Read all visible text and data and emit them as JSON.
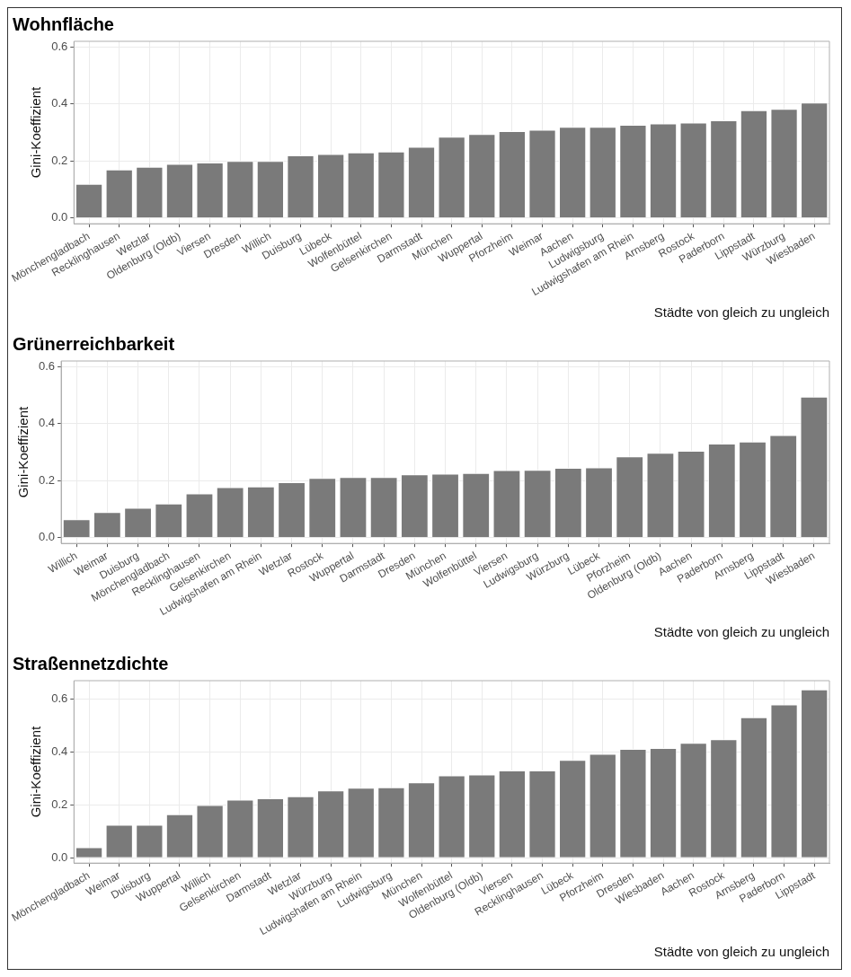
{
  "chart_data": [
    {
      "type": "bar",
      "title": "Wohnfläche",
      "xlabel": "Städte von gleich zu ungleich",
      "ylabel": "Gini-Koeffizient",
      "categories": [
        "Mönchengladbach",
        "Recklinghausen",
        "Wetzlar",
        "Oldenburg (Oldb)",
        "Viersen",
        "Dresden",
        "Willich",
        "Duisburg",
        "Lübeck",
        "Wolfenbüttel",
        "Gelsenkirchen",
        "Darmstadt",
        "München",
        "Wuppertal",
        "Pforzheim",
        "Weimar",
        "Aachen",
        "Ludwigsburg",
        "Ludwigshafen am Rhein",
        "Arnsberg",
        "Rostock",
        "Paderborn",
        "Lippstadt",
        "Würzburg",
        "Wiesbaden"
      ],
      "values": [
        0.12,
        0.17,
        0.18,
        0.19,
        0.195,
        0.2,
        0.2,
        0.22,
        0.225,
        0.23,
        0.233,
        0.25,
        0.285,
        0.295,
        0.305,
        0.31,
        0.32,
        0.32,
        0.327,
        0.332,
        0.335,
        0.343,
        0.378,
        0.383,
        0.405
      ],
      "color": "#7a7a7a",
      "ylim": [
        -0.02,
        0.62
      ],
      "yticks": [
        {
          "value": 0,
          "label": "0.0"
        },
        {
          "value": 0.2,
          "label": "0.2"
        },
        {
          "value": 0.4,
          "label": "0.4"
        },
        {
          "value": 0.6,
          "label": "0.6"
        }
      ],
      "grid": true
    },
    {
      "type": "bar",
      "title": "Grünerreichbarkeit",
      "xlabel": "Städte von gleich zu ungleich",
      "ylabel": "Gini-Koeffizient",
      "categories": [
        "Willich",
        "Weimar",
        "Duisburg",
        "Mönchengladbach",
        "Recklinghausen",
        "Gelsenkirchen",
        "Ludwigshafen am Rhein",
        "Wetzlar",
        "Rostock",
        "Wuppertal",
        "Darmstadt",
        "Dresden",
        "München",
        "Wolfenbüttel",
        "Viersen",
        "Ludwigsburg",
        "Würzburg",
        "Lübeck",
        "Pforzheim",
        "Oldenburg (Oldb)",
        "Aachen",
        "Paderborn",
        "Arnsberg",
        "Lippstadt",
        "Wiesbaden"
      ],
      "values": [
        0.065,
        0.09,
        0.105,
        0.12,
        0.155,
        0.177,
        0.18,
        0.195,
        0.21,
        0.213,
        0.213,
        0.222,
        0.225,
        0.227,
        0.237,
        0.238,
        0.245,
        0.247,
        0.285,
        0.298,
        0.305,
        0.33,
        0.337,
        0.36,
        0.495
      ],
      "color": "#7a7a7a",
      "ylim": [
        -0.02,
        0.62
      ],
      "yticks": [
        {
          "value": 0,
          "label": "0.0"
        },
        {
          "value": 0.2,
          "label": "0.2"
        },
        {
          "value": 0.4,
          "label": "0.4"
        },
        {
          "value": 0.6,
          "label": "0.6"
        }
      ],
      "grid": true
    },
    {
      "type": "bar",
      "title": "Straßennetzdichte",
      "xlabel": "Städte von gleich zu ungleich",
      "ylabel": "Gini-Koeffizient",
      "categories": [
        "Mönchengladbach",
        "Weimar",
        "Duisburg",
        "Wuppertal",
        "Willich",
        "Gelsenkirchen",
        "Darmstadt",
        "Wetzlar",
        "Würzburg",
        "Ludwigshafen am Rhein",
        "Ludwigsburg",
        "München",
        "Wolfenbüttel",
        "Oldenburg (Oldb)",
        "Viersen",
        "Recklinghausen",
        "Lübeck",
        "Pforzheim",
        "Dresden",
        "Wiesbaden",
        "Aachen",
        "Rostock",
        "Arnsberg",
        "Paderborn",
        "Lippstadt"
      ],
      "values": [
        0.04,
        0.125,
        0.125,
        0.165,
        0.2,
        0.22,
        0.225,
        0.233,
        0.255,
        0.265,
        0.267,
        0.285,
        0.312,
        0.315,
        0.33,
        0.33,
        0.37,
        0.393,
        0.412,
        0.415,
        0.435,
        0.448,
        0.532,
        0.58,
        0.637
      ],
      "color": "#7a7a7a",
      "ylim": [
        -0.02,
        0.67
      ],
      "yticks": [
        {
          "value": 0,
          "label": "0.0"
        },
        {
          "value": 0.2,
          "label": "0.2"
        },
        {
          "value": 0.4,
          "label": "0.4"
        },
        {
          "value": 0.6,
          "label": "0.6"
        }
      ],
      "grid": true
    }
  ]
}
